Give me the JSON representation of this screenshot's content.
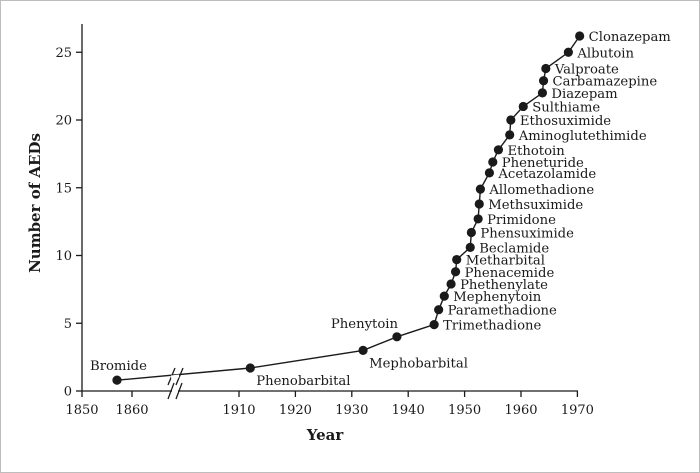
{
  "chart_data": {
    "type": "line",
    "title": "",
    "xlabel": "Year",
    "ylabel": "Number of AEDs",
    "xlim": [
      1850,
      1970
    ],
    "ylim": [
      0,
      27
    ],
    "axis_break": "between 1860 and 1910",
    "x_ticks": [
      "1850",
      "1860",
      "1910",
      "1920",
      "1930",
      "1940",
      "1950",
      "1960",
      "1970"
    ],
    "y_ticks": [
      "0",
      "5",
      "10",
      "15",
      "20",
      "25"
    ],
    "grid": false,
    "series": [
      {
        "points": [
          {
            "label": "Bromide",
            "x": 1857,
            "y": 0.8
          },
          {
            "label": "Phenobarbital",
            "x": 1912,
            "y": 1.7
          },
          {
            "label": "Mephobarbital",
            "x": 1932,
            "y": 3.0
          },
          {
            "label": "Phenytoin",
            "x": 1938,
            "y": 4.0
          },
          {
            "label": "Trimethadione",
            "x": 1944.6,
            "y": 4.9
          },
          {
            "label": "Paramethadione",
            "x": 1945.4,
            "y": 6.0
          },
          {
            "label": "Mephenytoin",
            "x": 1946.4,
            "y": 7.0
          },
          {
            "label": "Phethenylate",
            "x": 1947.6,
            "y": 7.9
          },
          {
            "label": "Phenacemide",
            "x": 1948.4,
            "y": 8.8
          },
          {
            "label": "Metharbital",
            "x": 1948.6,
            "y": 9.7
          },
          {
            "label": "Beclamide",
            "x": 1951.0,
            "y": 10.6
          },
          {
            "label": "Phensuximide",
            "x": 1951.2,
            "y": 11.7
          },
          {
            "label": "Primidone",
            "x": 1952.4,
            "y": 12.7
          },
          {
            "label": "Methsuximide",
            "x": 1952.6,
            "y": 13.8
          },
          {
            "label": "Allomethadione",
            "x": 1952.8,
            "y": 14.9
          },
          {
            "label": "Acetazolamide",
            "x": 1954.4,
            "y": 16.1
          },
          {
            "label": "Pheneturide",
            "x": 1955.0,
            "y": 16.9
          },
          {
            "label": "Ethotoin",
            "x": 1956.0,
            "y": 17.8
          },
          {
            "label": "Aminoglutethimide",
            "x": 1958.0,
            "y": 18.9
          },
          {
            "label": "Ethosuximide",
            "x": 1958.2,
            "y": 20.0
          },
          {
            "label": "Sulthiame",
            "x": 1960.4,
            "y": 21.0
          },
          {
            "label": "Diazepam",
            "x": 1963.8,
            "y": 22.0
          },
          {
            "label": "Carbamazepine",
            "x": 1964.0,
            "y": 22.9
          },
          {
            "label": "Valproate",
            "x": 1964.4,
            "y": 23.8
          },
          {
            "label": "Albutoin",
            "x": 1968.4,
            "y": 25.0
          },
          {
            "label": "Clonazepam",
            "x": 1970.4,
            "y": 26.2
          }
        ]
      }
    ]
  }
}
